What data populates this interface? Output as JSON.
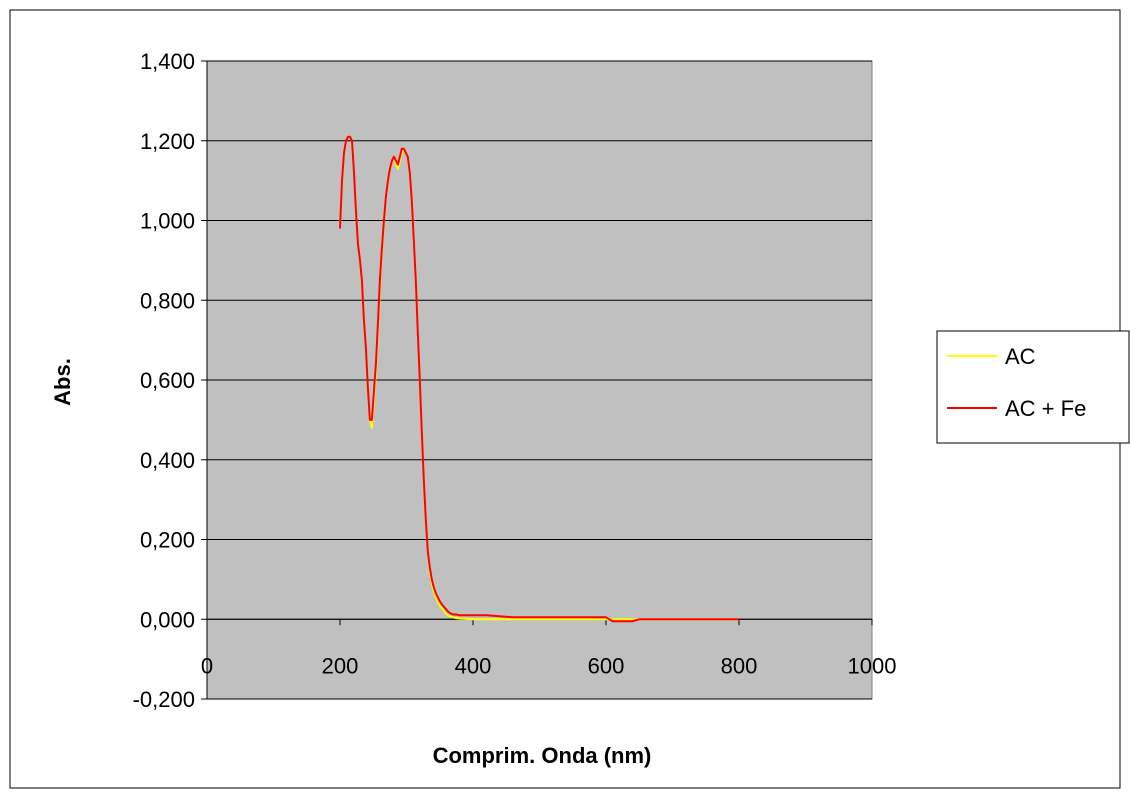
{
  "chart_data": {
    "type": "line",
    "title": "",
    "xlabel": "Comprim. Onda (nm)",
    "ylabel": "Abs.",
    "xlim": [
      0,
      1000
    ],
    "ylim": [
      -0.2,
      1.4
    ],
    "x_ticks": [
      0,
      200,
      400,
      600,
      800,
      1000
    ],
    "x_tick_labels": [
      "0",
      "200",
      "400",
      "600",
      "800",
      "1000"
    ],
    "y_ticks": [
      -0.2,
      0,
      0.2,
      0.4,
      0.6,
      0.8,
      1.0,
      1.2,
      1.4
    ],
    "y_tick_labels": [
      "-0,200",
      "0,000",
      "0,200",
      "0,400",
      "0,600",
      "0,800",
      "1,000",
      "1,200",
      "1,400"
    ],
    "grid": "horizontal",
    "plot_background": "#c0c0c0",
    "legend_position": "right",
    "series": [
      {
        "name": "AC",
        "color": "#ffff00",
        "x": [
          200,
          203,
          206,
          209,
          212,
          215,
          218,
          221,
          224,
          227,
          230,
          233,
          236,
          239,
          242,
          245,
          248,
          251,
          254,
          257,
          260,
          263,
          266,
          269,
          272,
          275,
          278,
          281,
          284,
          287,
          290,
          293,
          296,
          299,
          302,
          305,
          308,
          311,
          314,
          317,
          320,
          323,
          326,
          329,
          332,
          335,
          338,
          341,
          344,
          347,
          350,
          353,
          356,
          359,
          362,
          365,
          370,
          375,
          380,
          390,
          400,
          420,
          450,
          500,
          550,
          600,
          620,
          640,
          650,
          700,
          750,
          800
        ],
        "y": [
          0.98,
          1.1,
          1.17,
          1.2,
          1.21,
          1.21,
          1.2,
          1.12,
          1.02,
          0.94,
          0.9,
          0.85,
          0.75,
          0.68,
          0.58,
          0.5,
          0.48,
          0.55,
          0.62,
          0.72,
          0.83,
          0.92,
          1.0,
          1.06,
          1.1,
          1.13,
          1.15,
          1.16,
          1.14,
          1.13,
          1.15,
          1.17,
          1.18,
          1.17,
          1.16,
          1.12,
          1.05,
          0.95,
          0.85,
          0.72,
          0.6,
          0.47,
          0.35,
          0.25,
          0.17,
          0.12,
          0.09,
          0.07,
          0.055,
          0.045,
          0.035,
          0.028,
          0.022,
          0.015,
          0.01,
          0.008,
          0.005,
          0.003,
          0.002,
          0.001,
          0.0,
          0.0,
          0.0,
          0.0,
          0.0,
          0.0,
          0.0,
          0.0,
          0.0,
          0.0,
          0.0,
          0.0
        ]
      },
      {
        "name": "AC + Fe",
        "color": "#ff0000",
        "x": [
          200,
          203,
          206,
          209,
          212,
          215,
          218,
          221,
          224,
          227,
          230,
          233,
          236,
          239,
          242,
          245,
          248,
          251,
          254,
          257,
          260,
          263,
          266,
          269,
          272,
          275,
          278,
          281,
          284,
          287,
          290,
          293,
          296,
          299,
          302,
          305,
          308,
          311,
          314,
          317,
          320,
          323,
          326,
          329,
          332,
          335,
          338,
          341,
          344,
          347,
          350,
          353,
          356,
          359,
          362,
          365,
          370,
          375,
          380,
          390,
          400,
          420,
          460,
          470,
          500,
          550,
          600,
          605,
          610,
          620,
          640,
          650,
          700,
          750,
          800
        ],
        "y": [
          0.98,
          1.1,
          1.17,
          1.2,
          1.21,
          1.21,
          1.2,
          1.12,
          1.02,
          0.94,
          0.9,
          0.85,
          0.75,
          0.68,
          0.58,
          0.5,
          0.5,
          0.57,
          0.64,
          0.74,
          0.85,
          0.93,
          1.0,
          1.06,
          1.1,
          1.13,
          1.15,
          1.16,
          1.15,
          1.14,
          1.16,
          1.18,
          1.18,
          1.17,
          1.16,
          1.12,
          1.05,
          0.95,
          0.85,
          0.72,
          0.6,
          0.47,
          0.35,
          0.25,
          0.17,
          0.13,
          0.1,
          0.08,
          0.065,
          0.055,
          0.045,
          0.038,
          0.032,
          0.026,
          0.02,
          0.016,
          0.012,
          0.012,
          0.01,
          0.01,
          0.01,
          0.01,
          0.005,
          0.005,
          0.005,
          0.005,
          0.005,
          0.0,
          -0.005,
          -0.005,
          -0.005,
          0.0,
          0.0,
          0.0,
          0.0
        ]
      }
    ]
  }
}
